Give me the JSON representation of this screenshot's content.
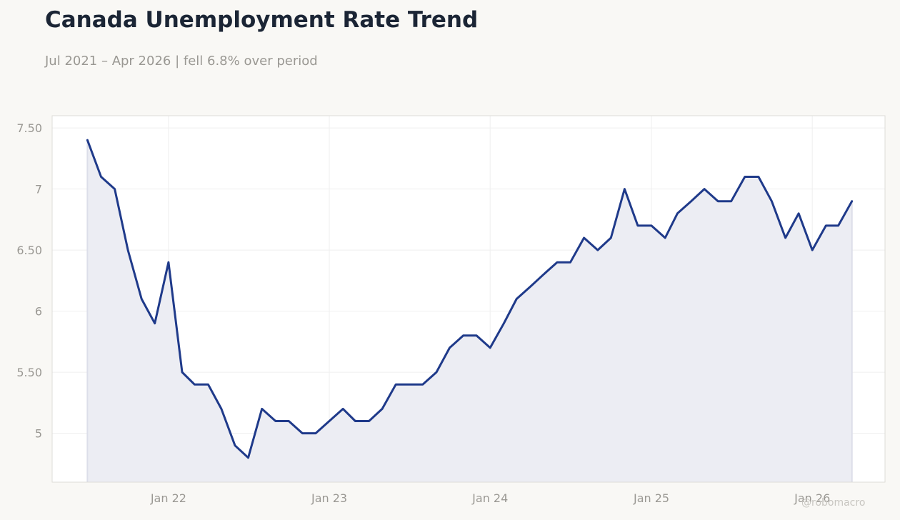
{
  "header": {
    "title": "Canada Unemployment Rate Trend",
    "subtitle": "Jul 2021 – Apr 2026 | fell 6.8% over period"
  },
  "watermark": "@robomacro",
  "colors": {
    "line": "#1f3a8a",
    "fill": "#ecedf3",
    "grid": "#efefef",
    "plot_border": "#dddcd8",
    "background": "#f9f8f5"
  },
  "chart_data": {
    "type": "area",
    "title": "Canada Unemployment Rate Trend",
    "subtitle": "Jul 2021 – Apr 2026 | fell 6.8% over period",
    "xlabel": "",
    "ylabel": "",
    "ylim": [
      4.6,
      7.6
    ],
    "xlim": [
      "2021-04-12",
      "2026-06-15"
    ],
    "grid": true,
    "y_ticks": [
      5,
      5.5,
      6,
      6.5,
      7,
      7.5
    ],
    "y_tick_labels": [
      "5",
      "5.50",
      "6",
      "6.50",
      "7",
      "7.50"
    ],
    "x_ticks": [
      "2022-01-01",
      "2023-01-01",
      "2024-01-01",
      "2025-01-01",
      "2026-01-01"
    ],
    "x_tick_labels": [
      "Jan 22",
      "Jan 23",
      "Jan 24",
      "Jan 25",
      "Jan 26"
    ],
    "series": [
      {
        "x": [
          "2021-07-01",
          "2021-08-01",
          "2021-09-01",
          "2021-10-01",
          "2021-11-01",
          "2021-12-01",
          "2022-01-01",
          "2022-02-01",
          "2022-03-01",
          "2022-04-01",
          "2022-05-01",
          "2022-06-01",
          "2022-07-01",
          "2022-08-01",
          "2022-09-01",
          "2022-10-01",
          "2022-11-01",
          "2022-12-01",
          "2023-01-01",
          "2023-02-01",
          "2023-03-01",
          "2023-04-01",
          "2023-05-01",
          "2023-06-01",
          "2023-07-01",
          "2023-08-01",
          "2023-09-01",
          "2023-10-01",
          "2023-11-01",
          "2023-12-01",
          "2024-01-01",
          "2024-02-01",
          "2024-03-01",
          "2024-04-01",
          "2024-05-01",
          "2024-06-01",
          "2024-07-01",
          "2024-08-01",
          "2024-09-01",
          "2024-10-01",
          "2024-11-01",
          "2024-12-01",
          "2025-01-01",
          "2025-02-01",
          "2025-03-01",
          "2025-04-01",
          "2025-05-01",
          "2025-06-01",
          "2025-07-01",
          "2025-08-01",
          "2025-09-01",
          "2025-10-01",
          "2025-11-01",
          "2025-12-01",
          "2026-01-01",
          "2026-02-01",
          "2026-03-01",
          "2026-04-01"
        ],
        "values": [
          7.4,
          7.1,
          7.0,
          6.5,
          6.1,
          5.9,
          6.4,
          5.5,
          5.4,
          5.4,
          5.2,
          4.9,
          4.8,
          5.2,
          5.1,
          5.1,
          5.0,
          5.0,
          5.1,
          5.2,
          5.1,
          5.1,
          5.2,
          5.4,
          5.4,
          5.4,
          5.5,
          5.7,
          5.8,
          5.8,
          5.7,
          5.9,
          6.1,
          6.2,
          6.3,
          6.4,
          6.4,
          6.6,
          6.5,
          6.6,
          7.0,
          6.7,
          6.7,
          6.6,
          6.8,
          6.9,
          7.0,
          6.9,
          6.9,
          7.1,
          7.1,
          6.9,
          6.6,
          6.8,
          6.5,
          6.7,
          6.7,
          6.9
        ]
      }
    ]
  }
}
